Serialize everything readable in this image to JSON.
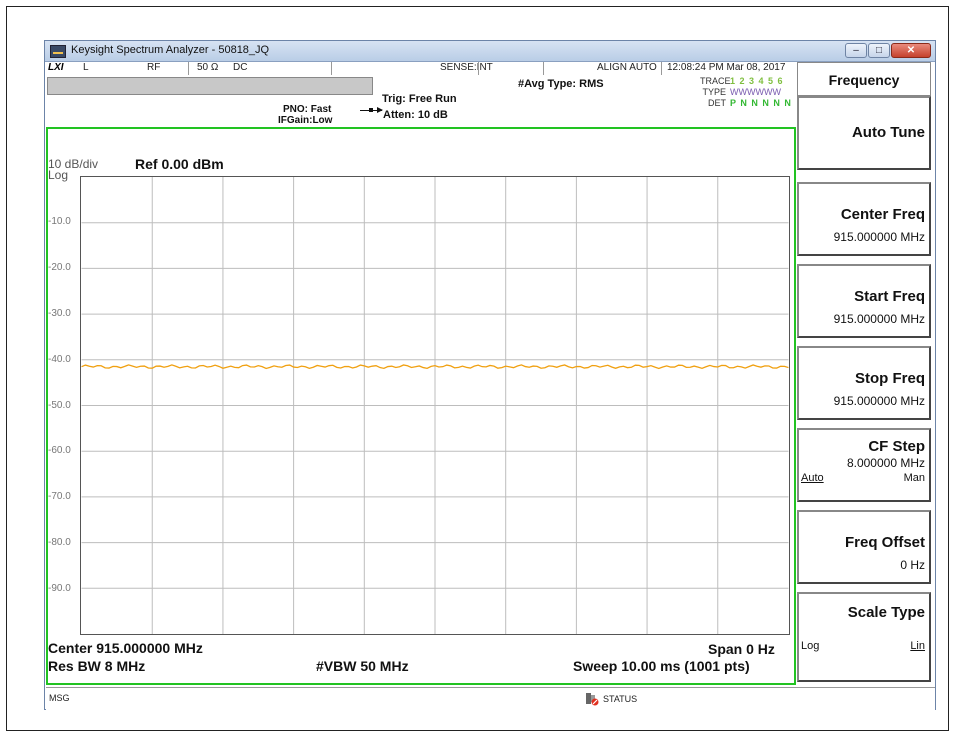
{
  "window": {
    "title": "Keysight Spectrum Analyzer - 50818_JQ",
    "controls": {
      "minimize": "–",
      "maximize": "□",
      "close": "✕"
    }
  },
  "status": {
    "lxi": "LXI",
    "coupling_l": "L",
    "rf": "RF",
    "impedance": "50 Ω",
    "dc": "DC",
    "sense": "SENSE:INT",
    "align": "ALIGN AUTO",
    "datetime": "12:08:24 PM Mar 08, 2017"
  },
  "header": {
    "avg_type": "#Avg Type: RMS",
    "pno": "PNO: Fast",
    "ifgain": "IFGain:Low",
    "trig": "Trig: Free Run",
    "atten": "Atten: 10 dB",
    "trace_label": "TRACE",
    "trace_values": "1 2 3 4 5 6",
    "type_label": "TYPE",
    "type_values": "WWWWWW",
    "det_label": "DET",
    "det_values": "P N N N N N"
  },
  "plot": {
    "scale": "10 dB/div",
    "log": "Log",
    "ref": "Ref 0.00 dBm",
    "y_ticks": [
      "-10.0",
      "-20.0",
      "-30.0",
      "-40.0",
      "-50.0",
      "-60.0",
      "-70.0",
      "-80.0",
      "-90.0"
    ],
    "trace_color": "#f0a010",
    "grid_color": "#bdbdbd",
    "border_color": "#22c322",
    "center": "Center 915.000000 MHz",
    "span": "Span 0 Hz",
    "res_bw": "Res BW 8 MHz",
    "vbw": "#VBW 50 MHz",
    "sweep": "Sweep  10.00 ms (1001 pts)"
  },
  "chart_data": {
    "type": "line",
    "ylim": [
      -100,
      0
    ],
    "y_ticks": [
      -10,
      -20,
      -30,
      -40,
      -50,
      -60,
      -70,
      -80,
      -90
    ],
    "x_divisions": 10,
    "series": [
      {
        "values": [
          -41.5,
          -41.5
        ]
      }
    ]
  },
  "msgbar": {
    "msg": "MSG",
    "status": "STATUS"
  },
  "menu": {
    "title": "Frequency",
    "keys": [
      {
        "title": "Auto Tune",
        "value": ""
      },
      {
        "title": "Center Freq",
        "value": "915.000000 MHz"
      },
      {
        "title": "Start Freq",
        "value": "915.000000 MHz"
      },
      {
        "title": "Stop Freq",
        "value": "915.000000 MHz"
      },
      {
        "title": "CF Step",
        "value": "8.000000 MHz",
        "left": "Auto",
        "right": "Man"
      },
      {
        "title": "Freq Offset",
        "value": "0 Hz"
      },
      {
        "title": "Scale Type",
        "value": "",
        "left": "Log",
        "right": "Lin"
      }
    ]
  }
}
